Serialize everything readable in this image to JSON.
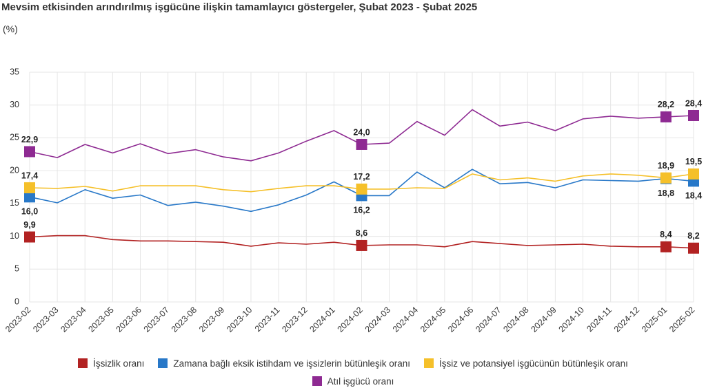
{
  "chart_data": {
    "type": "line",
    "title": "Mevsim etkisinden arındırılmış işgücüne ilişkin tamamlayıcı göstergeler, Şubat 2023 - Şubat 2025",
    "unit": "(%)",
    "ylim": [
      0,
      35
    ],
    "yticks": [
      0,
      5,
      10,
      15,
      20,
      25,
      30,
      35
    ],
    "grid": true,
    "legend_position": "bottom",
    "categories": [
      "2023-02",
      "2023-03",
      "2023-04",
      "2023-05",
      "2023-06",
      "2023-07",
      "2023-08",
      "2023-09",
      "2023-10",
      "2023-11",
      "2023-12",
      "2024-01",
      "2024-02",
      "2024-03",
      "2024-04",
      "2024-05",
      "2024-06",
      "2024-07",
      "2024-08",
      "2024-09",
      "2024-10",
      "2024-11",
      "2024-12",
      "2025-01",
      "2025-02"
    ],
    "series": [
      {
        "name": "İşsizlik oranı",
        "color": "#b22222",
        "values": [
          9.9,
          10.1,
          10.1,
          9.5,
          9.3,
          9.3,
          9.2,
          9.1,
          8.5,
          9.0,
          8.8,
          9.1,
          8.6,
          8.7,
          8.7,
          8.4,
          9.2,
          8.9,
          8.6,
          8.7,
          8.8,
          8.5,
          8.4,
          8.4,
          8.2
        ],
        "labeled_points": [
          {
            "index": 0,
            "text": "9,9"
          },
          {
            "index": 12,
            "text": "8,6"
          },
          {
            "index": 23,
            "text": "8,4"
          },
          {
            "index": 24,
            "text": "8,2"
          }
        ]
      },
      {
        "name": "Zamana bağlı eksik istihdam ve işsizlerin bütünleşik oranı",
        "color": "#2878c8",
        "values": [
          16.0,
          15.1,
          17.1,
          15.8,
          16.3,
          14.7,
          15.2,
          14.6,
          13.8,
          14.8,
          16.3,
          18.3,
          16.2,
          16.2,
          19.8,
          17.4,
          20.2,
          18.0,
          18.2,
          17.4,
          18.6,
          18.5,
          18.4,
          18.8,
          18.4
        ],
        "labeled_points": [
          {
            "index": 0,
            "text": "16,0"
          },
          {
            "index": 12,
            "text": "16,2"
          },
          {
            "index": 23,
            "text": "18,8"
          },
          {
            "index": 24,
            "text": "18,4"
          }
        ]
      },
      {
        "name": "İşsiz ve potansiyel işgücünün bütünleşik oranı",
        "color": "#f5c02a",
        "values": [
          17.4,
          17.3,
          17.6,
          16.9,
          17.7,
          17.7,
          17.7,
          17.1,
          16.8,
          17.3,
          17.7,
          17.7,
          17.2,
          17.2,
          17.4,
          17.3,
          19.5,
          18.6,
          18.9,
          18.4,
          19.2,
          19.5,
          19.3,
          18.9,
          19.5
        ],
        "labeled_points": [
          {
            "index": 0,
            "text": "17,4"
          },
          {
            "index": 12,
            "text": "17,2"
          },
          {
            "index": 23,
            "text": "18,9"
          },
          {
            "index": 24,
            "text": "19,5"
          }
        ]
      },
      {
        "name": "Atıl işgücü oranı",
        "color": "#8e2a92",
        "values": [
          22.9,
          22.0,
          24.0,
          22.7,
          24.1,
          22.6,
          23.2,
          22.1,
          21.5,
          22.7,
          24.5,
          26.1,
          24.0,
          24.2,
          27.5,
          25.4,
          29.3,
          26.8,
          27.4,
          26.1,
          27.9,
          28.3,
          28.0,
          28.2,
          28.4
        ],
        "labeled_points": [
          {
            "index": 0,
            "text": "22,9"
          },
          {
            "index": 12,
            "text": "24,0"
          },
          {
            "index": 23,
            "text": "28,2"
          },
          {
            "index": 24,
            "text": "28,4"
          }
        ]
      }
    ]
  }
}
